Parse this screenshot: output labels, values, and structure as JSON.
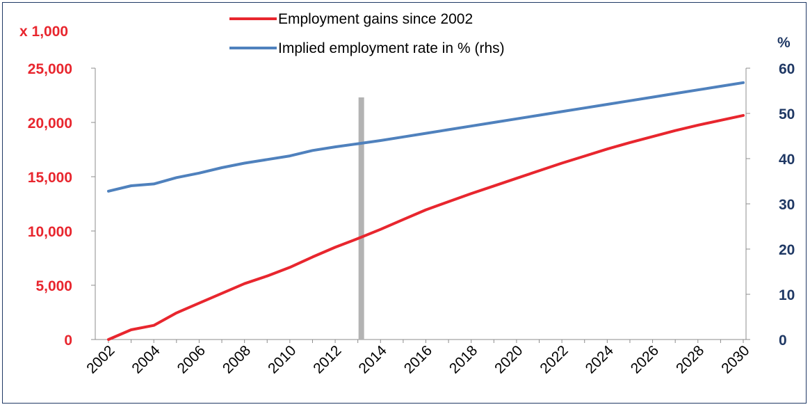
{
  "chart_data": {
    "type": "line",
    "title": "",
    "xlabel": "",
    "ylabel_left_unit": "x 1,000",
    "ylabel_right_unit": "%",
    "x": [
      2002,
      2003,
      2004,
      2005,
      2006,
      2007,
      2008,
      2009,
      2010,
      2011,
      2012,
      2013,
      2014,
      2015,
      2016,
      2017,
      2018,
      2019,
      2020,
      2021,
      2022,
      2023,
      2024,
      2025,
      2026,
      2027,
      2028,
      2029,
      2030
    ],
    "x_ticks": [
      "2002",
      "2004",
      "2006",
      "2008",
      "2010",
      "2012",
      "2014",
      "2016",
      "2018",
      "2020",
      "2022",
      "2024",
      "2026",
      "2028",
      "2030"
    ],
    "y_left_ticks": [
      "0",
      "5,000",
      "10,000",
      "15,000",
      "20,000",
      "25,000"
    ],
    "y_right_ticks": [
      "0",
      "10",
      "20",
      "30",
      "40",
      "50",
      "60"
    ],
    "ylim_left": [
      0,
      25000
    ],
    "ylim_right": [
      0,
      60
    ],
    "grid": false,
    "legend_position": "top-center",
    "vertical_marker_x": 2013,
    "series": [
      {
        "name": "Employment gains since 2002",
        "axis": "left",
        "color": "#e8262e",
        "values": [
          0,
          900,
          1300,
          2450,
          3350,
          4250,
          5150,
          5850,
          6650,
          7600,
          8500,
          9300,
          10150,
          11050,
          11950,
          12700,
          13450,
          14150,
          14850,
          15550,
          16250,
          16900,
          17550,
          18150,
          18700,
          19250,
          19750,
          20200,
          20650
        ]
      },
      {
        "name": "Implied employment rate in % (rhs)",
        "axis": "right",
        "color": "#4f81bd",
        "values": [
          32.8,
          34.0,
          34.4,
          35.8,
          36.8,
          38.0,
          39.0,
          39.8,
          40.6,
          41.8,
          42.6,
          43.3,
          44.0,
          44.8,
          45.6,
          46.4,
          47.2,
          48.0,
          48.8,
          49.6,
          50.4,
          51.2,
          52.0,
          52.8,
          53.6,
          54.4,
          55.2,
          56.0,
          56.8
        ]
      }
    ]
  },
  "colors": {
    "left_axis": "#e8262e",
    "right_axis": "#1f3864",
    "marker": "#b3b3b3",
    "axis_line": "#8c8c8c"
  }
}
